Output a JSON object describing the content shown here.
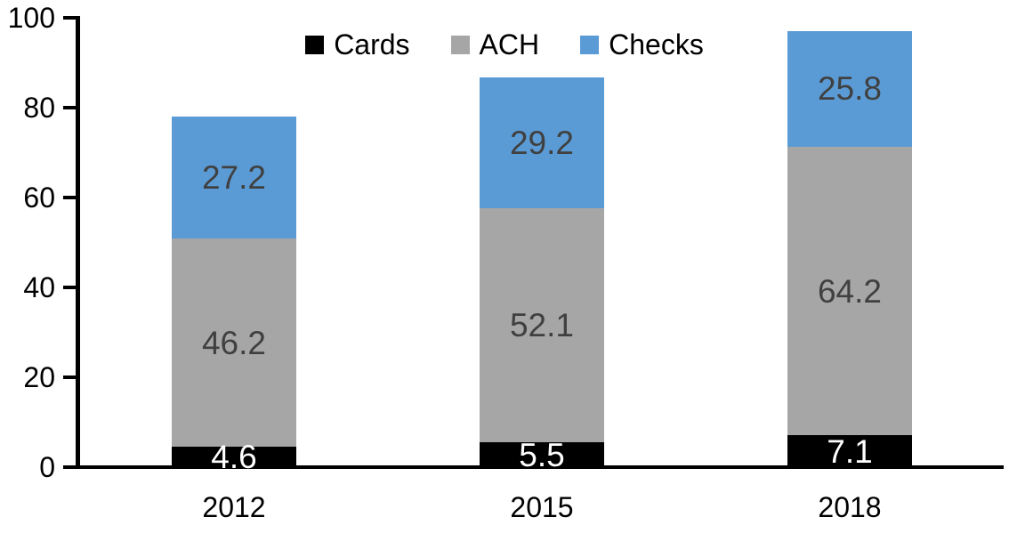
{
  "chart_data": {
    "type": "bar",
    "stacked": true,
    "title": "",
    "xlabel": "",
    "ylabel": "",
    "categories": [
      "2012",
      "2015",
      "2018"
    ],
    "series": [
      {
        "name": "Cards",
        "color": "#000000",
        "label_color": "#ffffff",
        "values": [
          4.6,
          5.5,
          7.1
        ]
      },
      {
        "name": "ACH",
        "color": "#a6a6a6",
        "label_color": "#404040",
        "values": [
          46.2,
          52.1,
          64.2
        ]
      },
      {
        "name": "Checks",
        "color": "#5b9bd5",
        "label_color": "#404040",
        "values": [
          27.2,
          29.2,
          25.8
        ]
      }
    ],
    "ylim": [
      0,
      100
    ],
    "yticks": [
      0,
      20,
      40,
      60,
      80,
      100
    ],
    "grid": false,
    "legend_position": "top-center",
    "data_labels": true,
    "axis_color": "#000000",
    "background_color": "#ffffff"
  }
}
